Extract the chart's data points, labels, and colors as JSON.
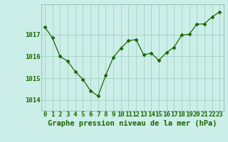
{
  "x": [
    0,
    1,
    2,
    3,
    4,
    5,
    6,
    7,
    8,
    9,
    10,
    11,
    12,
    13,
    14,
    15,
    16,
    17,
    18,
    19,
    20,
    21,
    22,
    23
  ],
  "y": [
    1017.35,
    1016.85,
    1016.0,
    1015.78,
    1015.3,
    1014.95,
    1014.42,
    1014.18,
    1015.12,
    1015.95,
    1016.38,
    1016.72,
    1016.78,
    1016.08,
    1016.15,
    1015.82,
    1016.18,
    1016.42,
    1016.98,
    1017.02,
    1017.48,
    1017.5,
    1017.82,
    1018.05
  ],
  "line_color": "#1a6600",
  "marker": "D",
  "marker_size": 2.5,
  "bg_color": "#cceee8",
  "grid_color": "#99ccbb",
  "xlabel": "Graphe pression niveau de la mer (hPa)",
  "xlabel_fontsize": 7.5,
  "xlabel_color": "#1a6600",
  "tick_label_color": "#1a6600",
  "tick_fontsize": 6.5,
  "yticks": [
    1014,
    1015,
    1016,
    1017
  ],
  "ylim": [
    1013.5,
    1018.4
  ],
  "xlim": [
    -0.5,
    23.5
  ],
  "xtick_labels": [
    "0",
    "1",
    "2",
    "3",
    "4",
    "5",
    "6",
    "7",
    "8",
    "9",
    "10",
    "11",
    "12",
    "13",
    "14",
    "15",
    "16",
    "17",
    "18",
    "19",
    "20",
    "21",
    "22",
    "23"
  ]
}
